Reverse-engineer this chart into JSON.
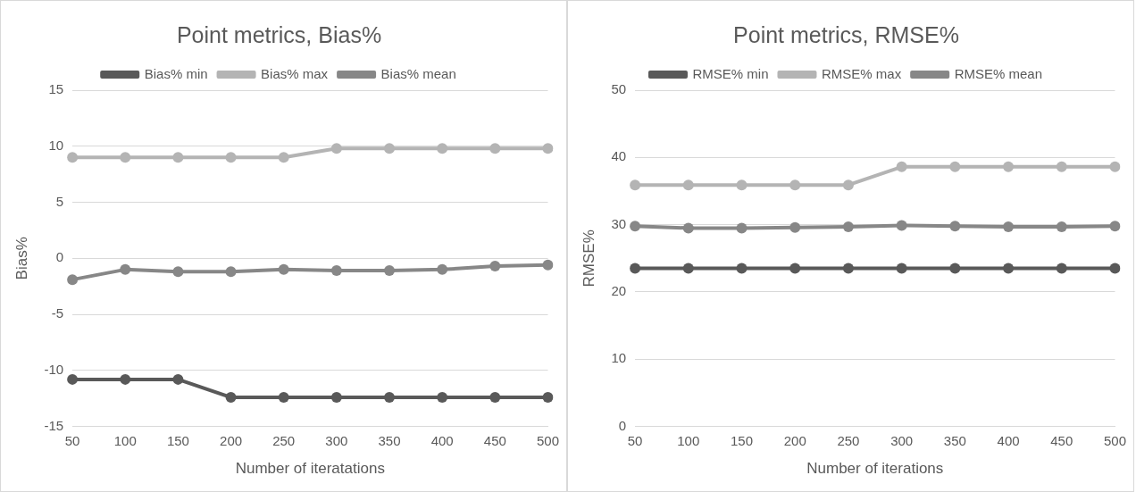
{
  "chart_data": [
    {
      "type": "line",
      "title": "Point metrics, Bias%",
      "xlabel": "Number of iteratations",
      "ylabel": "Bias%",
      "categories": [
        "50",
        "100",
        "150",
        "200",
        "250",
        "300",
        "350",
        "400",
        "450",
        "500"
      ],
      "series": [
        {
          "name": "Bias% min",
          "color": "#595959",
          "values": [
            -10.8,
            -10.8,
            -10.8,
            -12.4,
            -12.4,
            -12.4,
            -12.4,
            -12.4,
            -12.4,
            -12.4
          ]
        },
        {
          "name": "Bias% max",
          "color": "#b4b4b4",
          "values": [
            9.0,
            9.0,
            9.0,
            9.0,
            9.0,
            9.8,
            9.8,
            9.8,
            9.8,
            9.8
          ]
        },
        {
          "name": "Bias% mean",
          "color": "#878787",
          "values": [
            -1.9,
            -1.0,
            -1.2,
            -1.2,
            -1.0,
            -1.1,
            -1.1,
            -1.0,
            -0.7,
            -0.6
          ]
        }
      ],
      "ylim": [
        -15,
        15
      ],
      "yticks": [
        -15,
        -10,
        -5,
        0,
        5,
        10,
        15
      ],
      "grid": "y",
      "legend": "top",
      "marker": "circle"
    },
    {
      "type": "line",
      "title": "Point metrics, RMSE%",
      "xlabel": "Number of iterations",
      "ylabel": "RMSE%",
      "categories": [
        "50",
        "100",
        "150",
        "200",
        "250",
        "300",
        "350",
        "400",
        "450",
        "500"
      ],
      "series": [
        {
          "name": "RMSE% min",
          "color": "#595959",
          "values": [
            23.5,
            23.5,
            23.5,
            23.5,
            23.5,
            23.5,
            23.5,
            23.5,
            23.5,
            23.5
          ]
        },
        {
          "name": "RMSE% max",
          "color": "#b4b4b4",
          "values": [
            35.9,
            35.9,
            35.9,
            35.9,
            35.9,
            38.6,
            38.6,
            38.6,
            38.6,
            38.6
          ]
        },
        {
          "name": "RMSE% mean",
          "color": "#878787",
          "values": [
            29.8,
            29.5,
            29.5,
            29.6,
            29.7,
            29.9,
            29.8,
            29.7,
            29.7,
            29.8
          ]
        }
      ],
      "ylim": [
        0,
        50
      ],
      "yticks": [
        0,
        10,
        20,
        30,
        40,
        50
      ],
      "grid": "y",
      "legend": "top",
      "marker": "circle"
    }
  ]
}
